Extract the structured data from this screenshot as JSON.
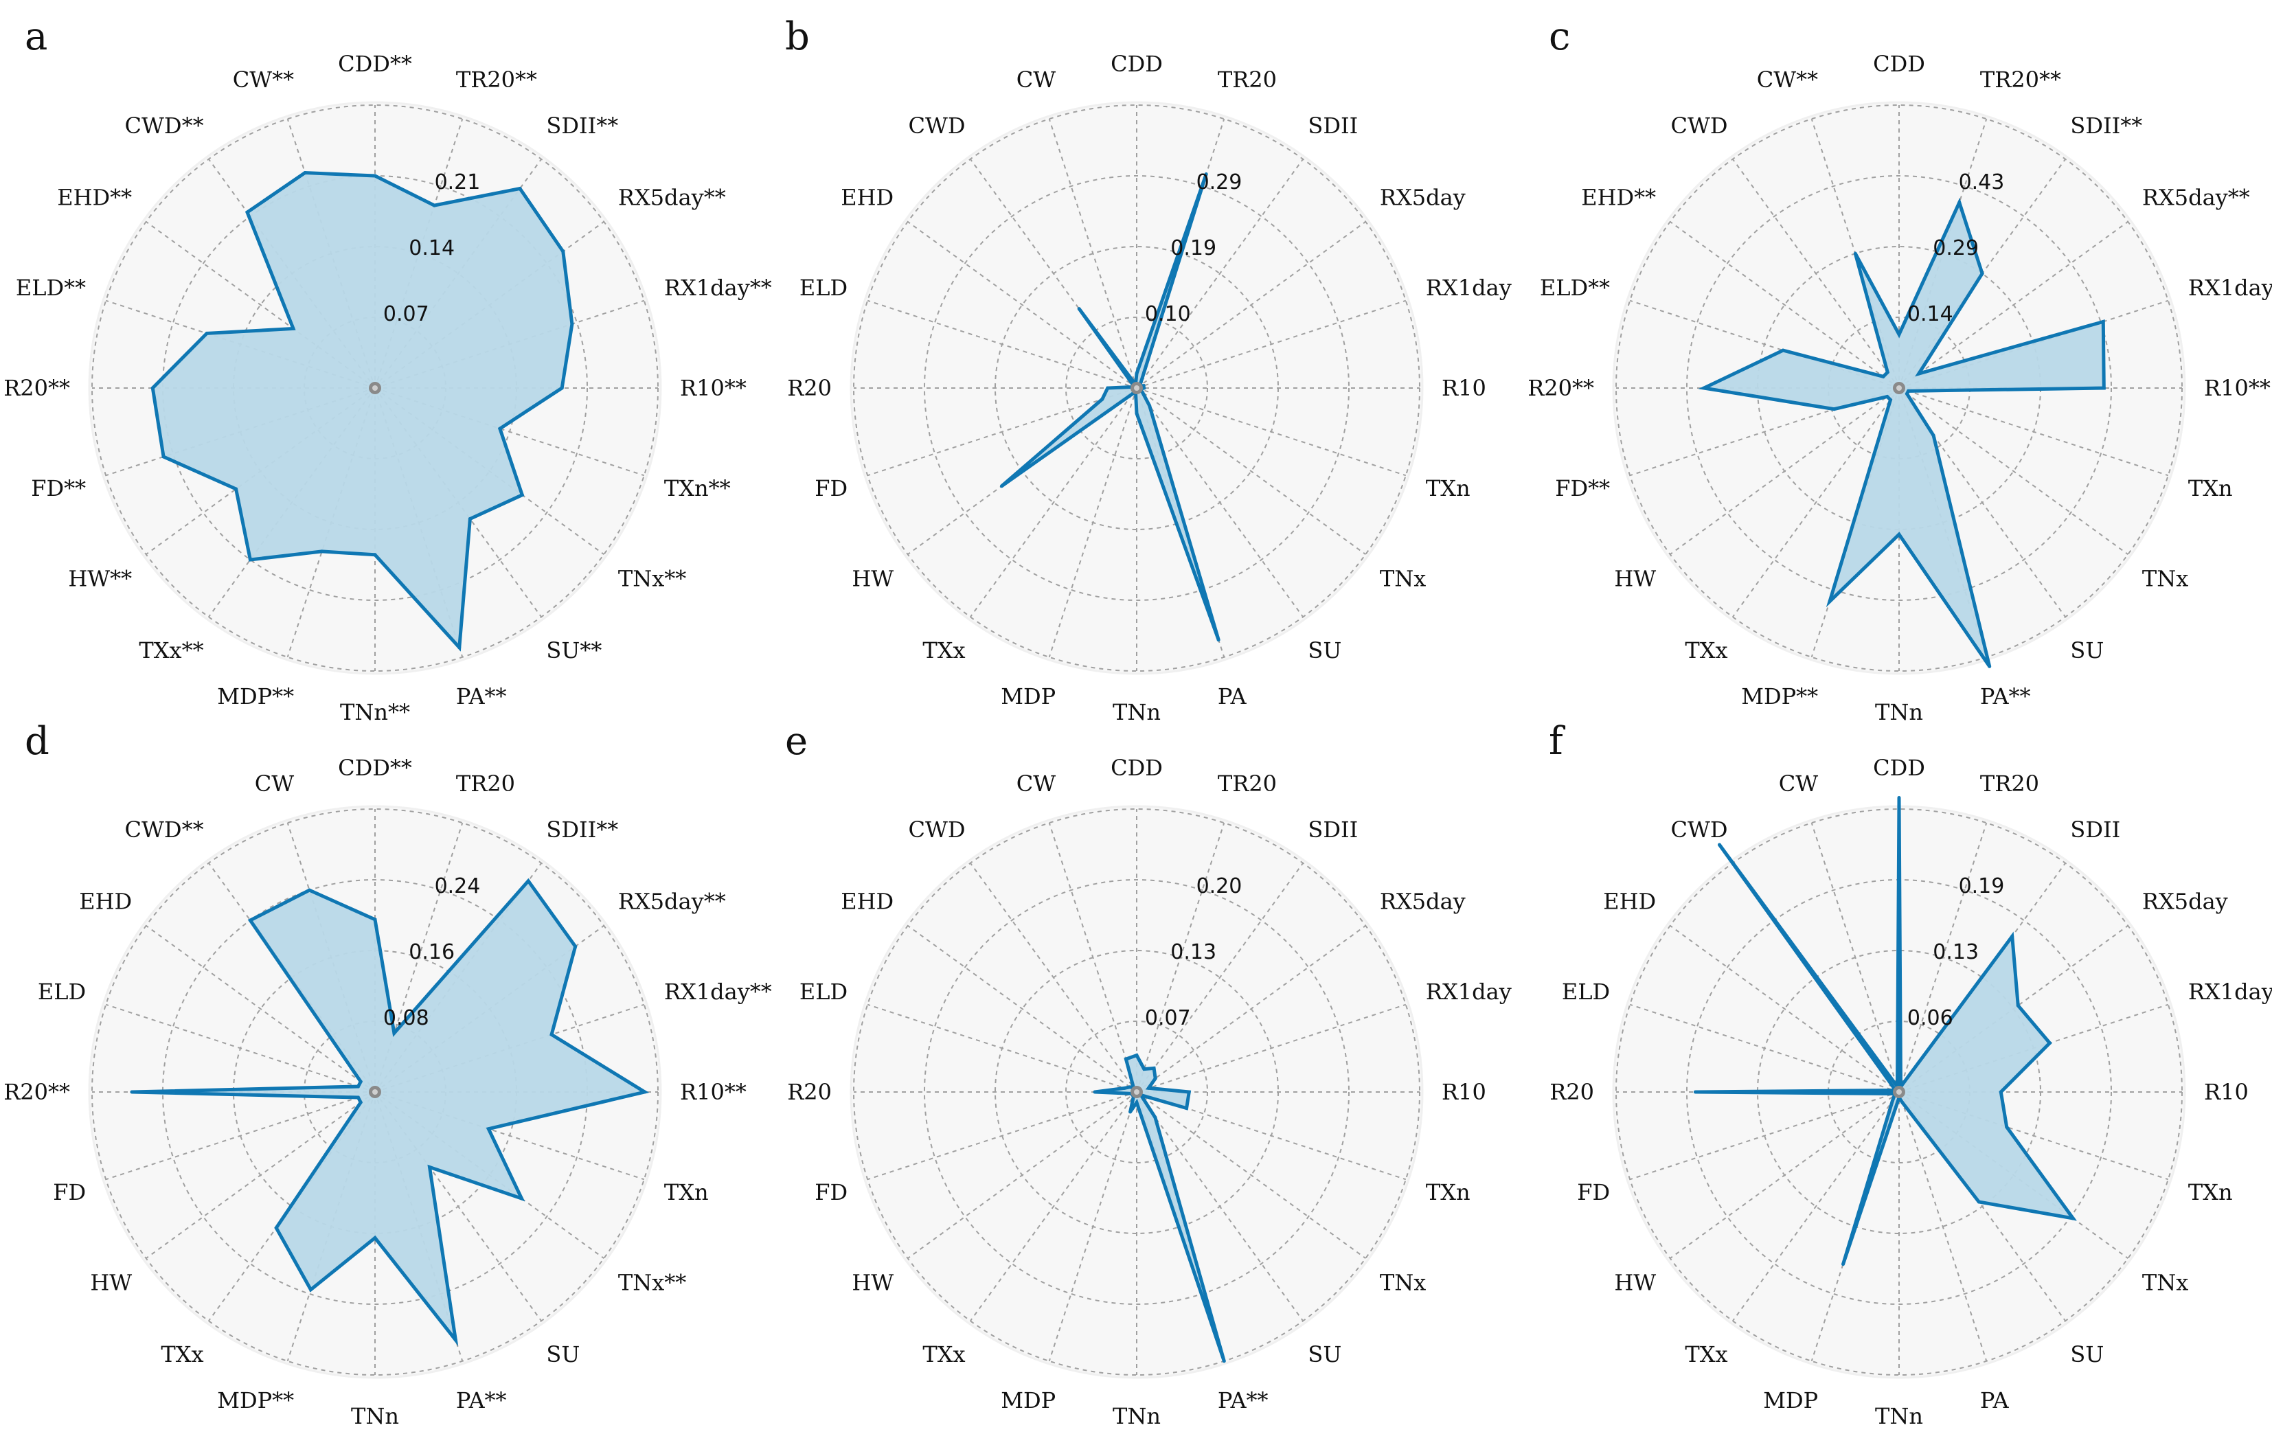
{
  "chart_data": [
    {
      "type": "radar",
      "panel": "a",
      "categories": [
        "CDD**",
        "TR20**",
        "SDII**",
        "RX5day**",
        "RX1day**",
        "R10**",
        "TXn**",
        "TNx**",
        "SU**",
        "PA**",
        "TNn**",
        "MDP**",
        "TXx**",
        "HW**",
        "FD**",
        "R20**",
        "ELD**",
        "EHD**",
        "CWD**",
        "CW**"
      ],
      "rings": [
        "0.07",
        "0.14",
        "0.21"
      ],
      "rmax": 0.28,
      "values": [
        0.21,
        0.19,
        0.244,
        0.23,
        0.205,
        0.185,
        0.13,
        0.18,
        0.16,
        0.27,
        0.165,
        0.17,
        0.21,
        0.17,
        0.22,
        0.22,
        0.175,
        0.1,
        0.215,
        0.224
      ],
      "grid": true,
      "color": "#0f77b3",
      "fill": "#b8d8e8"
    },
    {
      "type": "radar",
      "panel": "b",
      "categories": [
        "CDD",
        "TR20",
        "SDII",
        "RX5day",
        "RX1day",
        "R10",
        "TXn",
        "TNx",
        "SU",
        "PA",
        "TNn",
        "MDP",
        "TXx",
        "HW",
        "FD",
        "R20",
        "ELD",
        "EHD",
        "CWD",
        "CW"
      ],
      "rings": [
        "0.10",
        "0.19",
        "0.29"
      ],
      "rmax": 0.39,
      "values": [
        0.02,
        0.31,
        0.01,
        0.005,
        0.01,
        0.01,
        0.005,
        0.01,
        0.03,
        0.365,
        0.035,
        0.005,
        0.01,
        0.23,
        0.05,
        0.04,
        0.005,
        0.005,
        0.135,
        0.005
      ],
      "grid": true,
      "color": "#0f77b3",
      "fill": "#b8d8e8"
    },
    {
      "type": "radar",
      "panel": "c",
      "categories": [
        "CDD",
        "TR20**",
        "SDII**",
        "RX5day**",
        "RX1day**",
        "R10**",
        "TXn",
        "TNx",
        "SU",
        "PA**",
        "TNn",
        "MDP**",
        "TXx",
        "HW",
        "FD**",
        "R20**",
        "ELD**",
        "EHD**",
        "CWD",
        "CW**"
      ],
      "rings": [
        "0.14",
        "0.29",
        "0.43"
      ],
      "rmax": 0.58,
      "values": [
        0.11,
        0.4,
        0.29,
        0.05,
        0.44,
        0.42,
        0.02,
        0.02,
        0.12,
        0.6,
        0.3,
        0.46,
        0.03,
        0.03,
        0.14,
        0.4,
        0.25,
        0.04,
        0.04,
        0.29
      ],
      "grid": true,
      "color": "#0f77b3",
      "fill": "#b8d8e8"
    },
    {
      "type": "radar",
      "panel": "d",
      "categories": [
        "CDD**",
        "TR20",
        "SDII**",
        "RX5day**",
        "RX1day**",
        "R10**",
        "TXn",
        "TNx**",
        "SU",
        "PA**",
        "TNn",
        "MDP**",
        "TXx",
        "HW",
        "FD",
        "R20**",
        "ELD",
        "EHD",
        "CWD**",
        "CW"
      ],
      "rings": [
        "0.08",
        "0.16",
        "0.24"
      ],
      "rmax": 0.32,
      "values": [
        0.195,
        0.07,
        0.295,
        0.28,
        0.21,
        0.305,
        0.135,
        0.205,
        0.105,
        0.295,
        0.165,
        0.235,
        0.19,
        0.02,
        0.02,
        0.275,
        0.02,
        0.02,
        0.24,
        0.24
      ],
      "grid": true,
      "color": "#0f77b3",
      "fill": "#b8d8e8"
    },
    {
      "type": "radar",
      "panel": "e",
      "categories": [
        "CDD",
        "TR20",
        "SDII",
        "RX5day",
        "RX1day",
        "R10",
        "TXn",
        "TNx",
        "SU",
        "PA**",
        "TNn",
        "MDP",
        "TXx",
        "HW",
        "FD",
        "R20",
        "ELD",
        "EHD",
        "CWD",
        "CW"
      ],
      "rings": [
        "0.07",
        "0.13",
        "0.20"
      ],
      "rmax": 0.27,
      "values": [
        0.035,
        0.023,
        0.028,
        0.022,
        0.012,
        0.05,
        0.05,
        0.005,
        0.03,
        0.27,
        0.01,
        0.02,
        0.005,
        0.005,
        0.005,
        0.04,
        0.012,
        0.008,
        0.005,
        0.033
      ],
      "grid": true,
      "color": "#0f77b3",
      "fill": "#b8d8e8"
    },
    {
      "type": "radar",
      "panel": "f",
      "categories": [
        "CDD",
        "TR20",
        "SDII",
        "RX5day",
        "RX1day",
        "R10",
        "TXn",
        "TNx",
        "SU",
        "PA",
        "TNn",
        "MDP",
        "TXx",
        "HW",
        "FD",
        "R20",
        "ELD",
        "EHD",
        "CWD",
        "CW"
      ],
      "rings": [
        "0.06",
        "0.13",
        "0.19"
      ],
      "rmax": 0.25,
      "values": [
        0.26,
        0.005,
        0.17,
        0.13,
        0.14,
        0.09,
        0.1,
        0.19,
        0.12,
        0.01,
        0.005,
        0.16,
        0.01,
        0.005,
        0.005,
        0.18,
        0.005,
        0.005,
        0.28,
        0.005
      ],
      "grid": true,
      "color": "#0f77b3",
      "fill": "#b8d8e8"
    }
  ]
}
